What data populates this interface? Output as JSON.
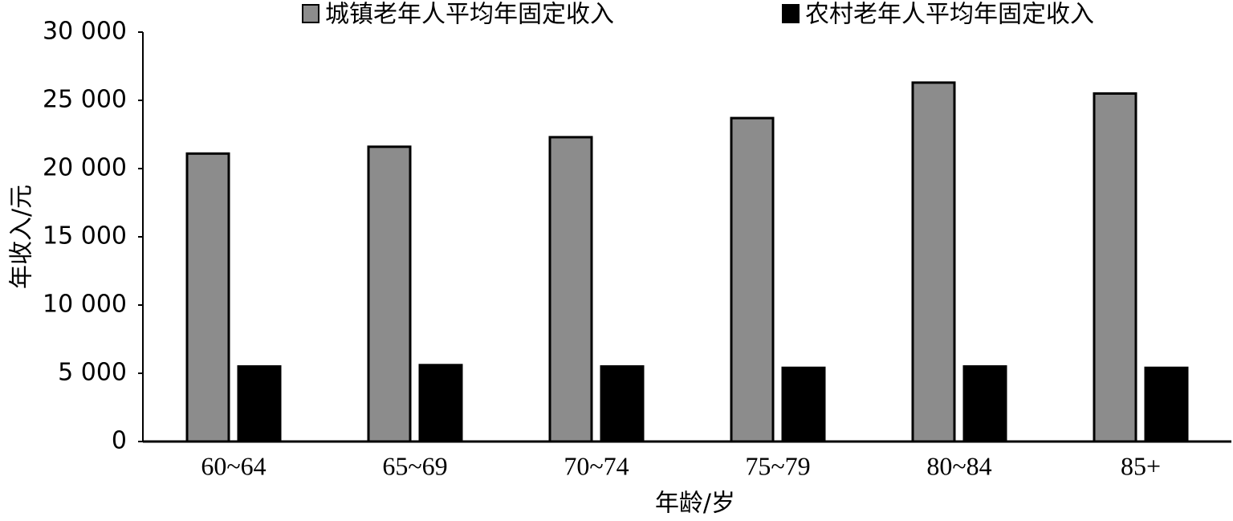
{
  "chart_data": {
    "type": "bar",
    "categories": [
      "60~64",
      "65~69",
      "70~74",
      "75~79",
      "80~84",
      "85+"
    ],
    "series": [
      {
        "name": "城镇老年人平均年固定收入",
        "color": "#8c8c8c",
        "values": [
          21100,
          21600,
          22300,
          23700,
          26300,
          25500
        ]
      },
      {
        "name": "农村老年人平均年固定收入",
        "color": "#000000",
        "values": [
          5500,
          5600,
          5500,
          5400,
          5500,
          5400
        ]
      }
    ],
    "xlabel": "年龄/岁",
    "ylabel": "年收入/元",
    "ylim": [
      0,
      30000
    ],
    "yticks": [
      0,
      {
        "value": 5000,
        "label": "5 000"
      },
      {
        "value": 10000,
        "label": "10 000"
      },
      {
        "value": 15000,
        "label": "15 000"
      },
      {
        "value": 20000,
        "label": "20 000"
      },
      {
        "value": 25000,
        "label": "25 000"
      },
      {
        "value": 30000,
        "label": "30 000"
      }
    ],
    "grid": false,
    "legend": "top"
  }
}
